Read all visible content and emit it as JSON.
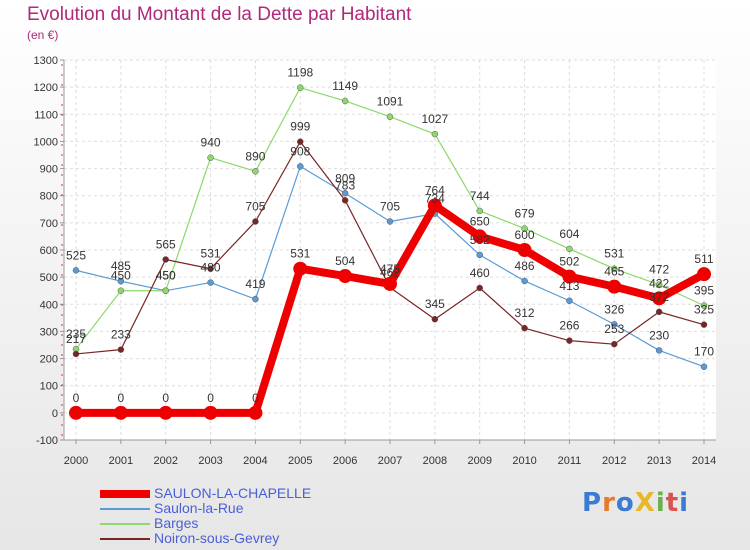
{
  "title": "Evolution du Montant de la Dette par Habitant",
  "subtitle": "(en €)",
  "logo": {
    "text": "ProXiti",
    "colors": [
      "#3a7bd5",
      "#e87a2b",
      "#3a7bd5",
      "#e8b82b",
      "#6ab04c",
      "#d9534f",
      "#3a7bd5"
    ]
  },
  "chart_data": {
    "type": "line",
    "x": [
      "2000",
      "2001",
      "2002",
      "2003",
      "2004",
      "2005",
      "2006",
      "2007",
      "2008",
      "2009",
      "2010",
      "2011",
      "2012",
      "2013",
      "2014"
    ],
    "ylim": [
      -100,
      1300
    ],
    "yticks": [
      "-100",
      "0",
      "100",
      "200",
      "300",
      "400",
      "500",
      "600",
      "700",
      "800",
      "900",
      "1000",
      "1100",
      "1200",
      "1300"
    ],
    "grid": true,
    "legend_position": "bottom",
    "series": [
      {
        "name": "SAULON-LA-CHAPELLE",
        "color": "#ee0000",
        "width": 8,
        "values": [
          0,
          0,
          0,
          0,
          0,
          531,
          504,
          475,
          764,
          650,
          600,
          502,
          465,
          422,
          511
        ]
      },
      {
        "name": "Saulon-la-Rue",
        "color": "#5b9bd5",
        "width": 1.2,
        "values": [
          525,
          485,
          450,
          480,
          419,
          908,
          809,
          705,
          734,
          582,
          486,
          413,
          326,
          230,
          170
        ]
      },
      {
        "name": "Barges",
        "color": "#8cd86a",
        "width": 1.2,
        "values": [
          235,
          450,
          450,
          940,
          890,
          1198,
          1149,
          1091,
          1027,
          744,
          679,
          604,
          531,
          472,
          395
        ]
      },
      {
        "name": "Noiron-sous-Gevrey",
        "color": "#7a2525",
        "width": 1.2,
        "values": [
          217,
          233,
          565,
          531,
          705,
          999,
          783,
          462,
          345,
          460,
          312,
          266,
          253,
          372,
          325
        ]
      }
    ]
  }
}
